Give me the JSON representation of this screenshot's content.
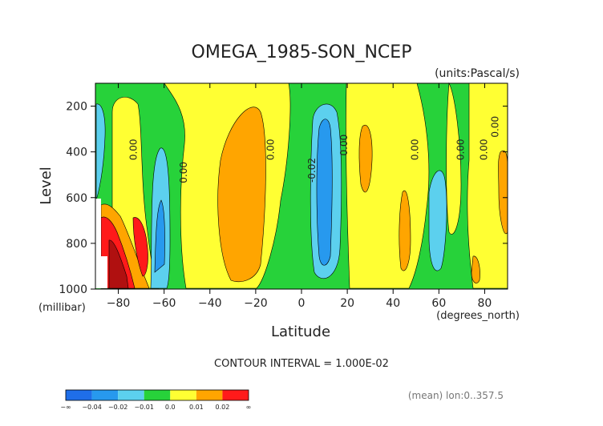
{
  "chart_data": {
    "type": "heatmap",
    "title": "OMEGA_1985-SON_NCEP",
    "units": "(units:Pascal/s)",
    "xlabel": "Latitude",
    "ylabel": "Level",
    "xunit": "(degrees_north)",
    "yunit": "(millibar)",
    "xlim": [
      -90,
      90
    ],
    "ylim": [
      1000,
      100
    ],
    "x_ticks": [
      -80,
      -60,
      -40,
      -20,
      0,
      20,
      40,
      60,
      80
    ],
    "x_tick_labels": [
      "−80",
      "−60",
      "−40",
      "−20",
      "0",
      "20",
      "40",
      "60",
      "80"
    ],
    "y_ticks": [
      200,
      400,
      600,
      800,
      1000
    ],
    "contour_interval_text": "CONTOUR INTERVAL = 1.000E-02",
    "footer_text": "(mean) lon:0..357.5",
    "colorbar": {
      "colors": [
        "#1f6ee8",
        "#2799ee",
        "#5cd0ee",
        "#27d23a",
        "#ffff33",
        "#ffa500",
        "#ff1a1a"
      ],
      "labels": [
        "−∞",
        "−0.04",
        "−0.02",
        "−0.01",
        "0.0",
        "0.01",
        "0.02",
        "∞"
      ]
    },
    "contour_labels": [
      {
        "text": "0.00",
        "x": -72,
        "y": 390
      },
      {
        "text": "0.00",
        "x": -50,
        "y": 490
      },
      {
        "text": "0.00",
        "x": -12,
        "y": 390
      },
      {
        "text": "-0.02",
        "x": 6,
        "y": 480
      },
      {
        "text": "0.00",
        "x": 20,
        "y": 370
      },
      {
        "text": "0.00",
        "x": 51,
        "y": 390
      },
      {
        "text": "0.00",
        "x": 71,
        "y": 390
      },
      {
        "text": "0.00",
        "x": 81,
        "y": 390
      },
      {
        "text": "0.00",
        "x": 86,
        "y": 290
      }
    ],
    "regions": [
      {
        "value": "0.0 to 0.01",
        "color": "#ffff33",
        "lat_span": [
          -78,
          -64
        ]
      },
      {
        "value": "-0.02 to -0.01",
        "color": "#5cd0ee",
        "lat_span": [
          -63,
          -59
        ]
      },
      {
        "value": "0.0 to 0.01",
        "color": "#ffff33",
        "lat_span": [
          -52,
          -10
        ]
      },
      {
        "value": "0.01 to 0.02",
        "color": "#ffa500",
        "lat_span": [
          -34,
          -18
        ]
      },
      {
        "value": "-0.02 to -0.01",
        "color": "#5cd0ee",
        "lat_span": [
          3,
          15
        ]
      },
      {
        "value": "below -0.02",
        "color": "#2799ee",
        "lat_span": [
          6,
          12
        ]
      },
      {
        "value": "0.0 to 0.01",
        "color": "#ffff33",
        "lat_span": [
          18,
          52
        ]
      },
      {
        "value": "-0.02 to -0.01",
        "color": "#5cd0ee",
        "lat_span": [
          55,
          62
        ]
      },
      {
        "value": "0.01 to 0.02",
        "color": "#ffa500",
        "lat_span": [
          85,
          90
        ]
      }
    ]
  }
}
